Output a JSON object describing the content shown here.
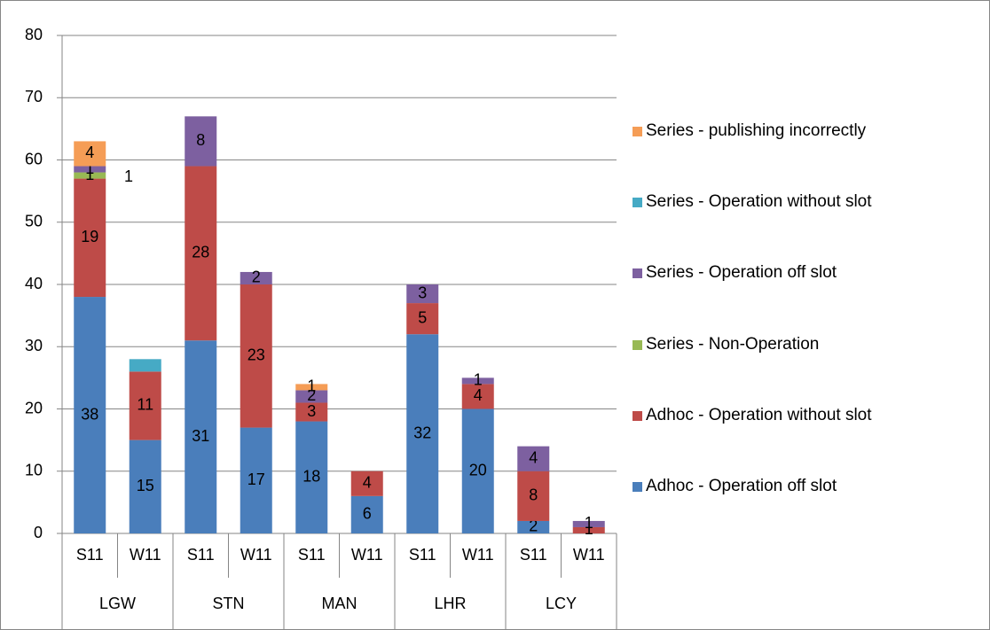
{
  "chart_data": {
    "type": "bar",
    "stacked": true,
    "categories": [
      "S11",
      "W11",
      "S11",
      "W11",
      "S11",
      "W11",
      "S11",
      "W11",
      "S11",
      "W11"
    ],
    "groups": [
      "LGW",
      "STN",
      "MAN",
      "LHR",
      "LCY"
    ],
    "series": [
      {
        "name": "Adhoc - Operation off slot",
        "color": "#4a7ebb",
        "values": [
          38,
          15,
          31,
          17,
          18,
          6,
          32,
          20,
          2,
          null
        ]
      },
      {
        "name": "Adhoc - Operation without slot",
        "color": "#be4b48",
        "values": [
          19,
          11,
          28,
          23,
          3,
          4,
          5,
          4,
          8,
          1
        ]
      },
      {
        "name": "Series - Non-Operation",
        "color": "#98b954",
        "values": [
          1,
          null,
          null,
          null,
          null,
          null,
          null,
          null,
          null,
          null
        ]
      },
      {
        "name": "Series - Operation off slot",
        "color": "#7d60a0",
        "values": [
          1,
          null,
          8,
          2,
          2,
          null,
          3,
          1,
          4,
          1
        ]
      },
      {
        "name": "Series - Operation without slot",
        "color": "#46aac5",
        "values": [
          null,
          2,
          null,
          null,
          null,
          null,
          null,
          null,
          null,
          null
        ],
        "data_labels": false
      },
      {
        "name": "Series - publishing incorrectly",
        "color": "#f59d56",
        "values": [
          4,
          null,
          null,
          null,
          1,
          null,
          null,
          null,
          null,
          null
        ]
      }
    ],
    "annotations": [
      "1"
    ],
    "ylim": [
      0,
      80
    ],
    "yticks": [
      0,
      10,
      20,
      30,
      40,
      50,
      60,
      70,
      80
    ],
    "grid": true
  }
}
